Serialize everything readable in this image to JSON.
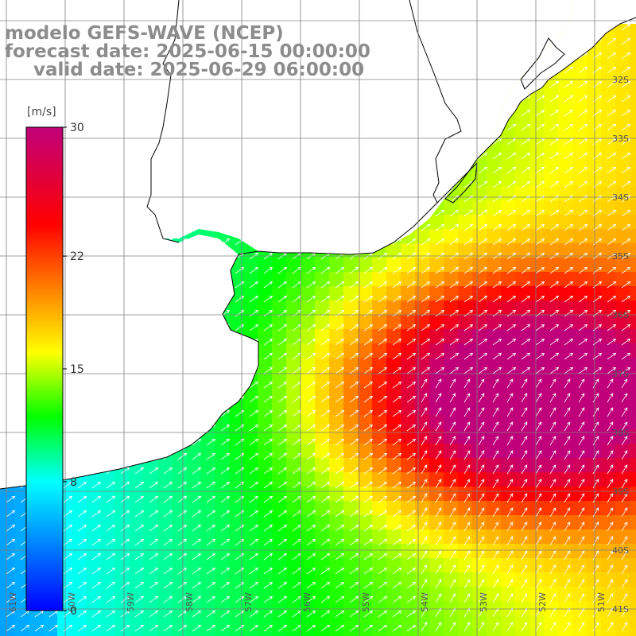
{
  "header": {
    "model": "modelo GEFS-WAVE (NCEP)",
    "forecast": "forecast date: 2025-06-15 00:00:00",
    "valid": "valid date: 2025-06-29 06:00:00"
  },
  "colorbar": {
    "unit": "[m/s]",
    "ticks": [
      {
        "value": 30,
        "label": "30"
      },
      {
        "value": 22,
        "label": "22"
      },
      {
        "value": 15,
        "label": "15"
      },
      {
        "value": 8,
        "label": "8"
      },
      {
        "value": 0,
        "label": "0"
      }
    ],
    "colors": [
      "#0000ff",
      "#00ffff",
      "#00ff00",
      "#ffff00",
      "#ff0000",
      "#c0007a"
    ]
  },
  "map": {
    "lon_labels": [
      "61W",
      "60W",
      "59W",
      "58W",
      "57W",
      "56W",
      "55W",
      "54W",
      "53W",
      "52W",
      "51W"
    ],
    "lat_labels": [
      "32S",
      "33S",
      "34S",
      "35S",
      "36S",
      "37S",
      "38S",
      "39S",
      "40S",
      "41S"
    ],
    "land_color": "#ffffff",
    "coast_color": "#000000",
    "grid_color": "#808080"
  }
}
